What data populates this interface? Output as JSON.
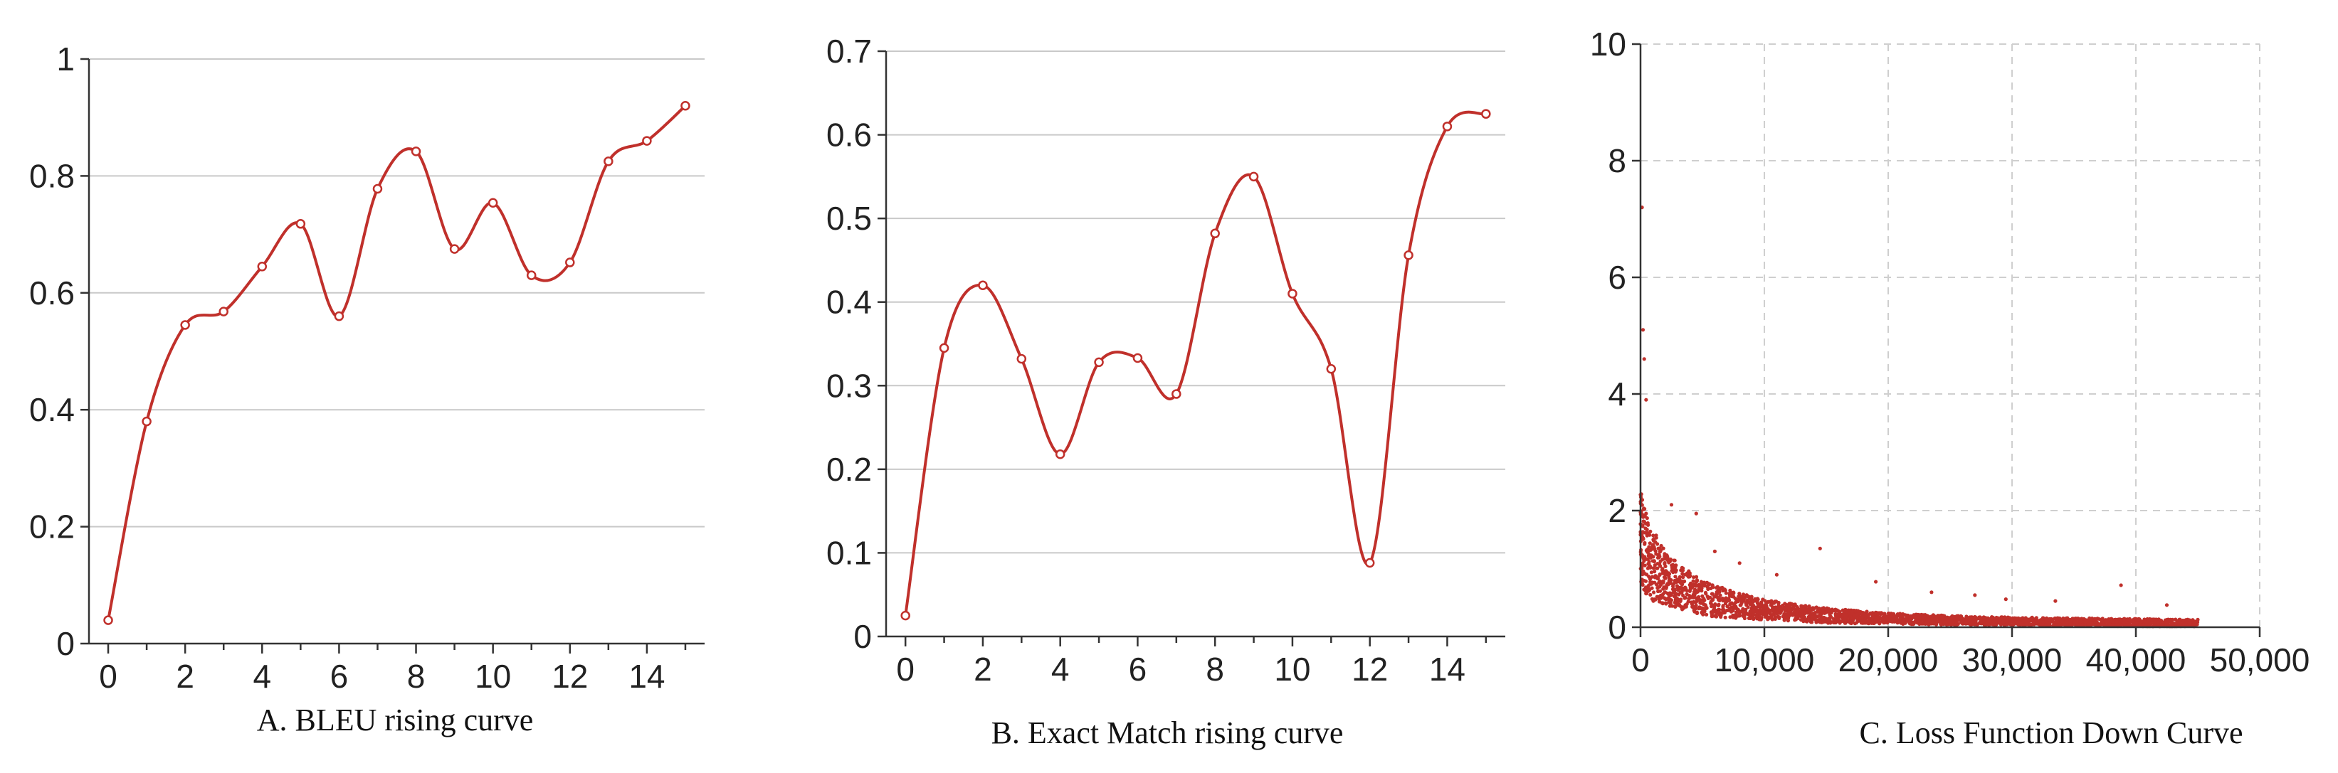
{
  "chart_data": [
    {
      "type": "line",
      "caption": "A. BLEU rising curve",
      "x": [
        0,
        1,
        2,
        3,
        4,
        5,
        6,
        7,
        8,
        9,
        10,
        11,
        12,
        13,
        14,
        15
      ],
      "y": [
        0.04,
        0.38,
        0.545,
        0.568,
        0.645,
        0.718,
        0.56,
        0.778,
        0.842,
        0.675,
        0.754,
        0.63,
        0.652,
        0.825,
        0.86,
        0.92
      ],
      "xlim": [
        -0.5,
        15.5
      ],
      "ylim": [
        0,
        1
      ],
      "xticks": [
        0,
        2,
        4,
        6,
        8,
        10,
        12,
        14
      ],
      "yticks": [
        0,
        0.2,
        0.4,
        0.6,
        0.8,
        1
      ],
      "yticklabels": [
        "0",
        "0.2",
        "0.4",
        "0.6",
        "0.8",
        "1"
      ],
      "grid": "horizontal",
      "color": "#c0302b"
    },
    {
      "type": "line",
      "caption": "B. Exact Match rising curve",
      "x": [
        0,
        1,
        2,
        3,
        4,
        5,
        6,
        7,
        8,
        9,
        10,
        11,
        12,
        13,
        14,
        15
      ],
      "y": [
        0.025,
        0.345,
        0.42,
        0.332,
        0.218,
        0.328,
        0.333,
        0.29,
        0.482,
        0.55,
        0.41,
        0.32,
        0.088,
        0.456,
        0.61,
        0.625
      ],
      "xlim": [
        -0.5,
        15.5
      ],
      "ylim": [
        0,
        0.7
      ],
      "xticks": [
        0,
        2,
        4,
        6,
        8,
        10,
        12,
        14
      ],
      "yticks": [
        0,
        0.1,
        0.2,
        0.3,
        0.4,
        0.5,
        0.6,
        0.7
      ],
      "yticklabels": [
        "0",
        "0.1",
        "0.2",
        "0.3",
        "0.4",
        "0.5",
        "0.6",
        "0.7"
      ],
      "grid": "horizontal",
      "color": "#c0302b"
    },
    {
      "type": "scatter",
      "caption": "C. Loss Function Down Curve",
      "xlim": [
        0,
        50000
      ],
      "ylim": [
        0,
        10
      ],
      "xticks": [
        0,
        10000,
        20000,
        30000,
        40000,
        50000
      ],
      "xticklabels": [
        "0",
        "10,000",
        "20,000",
        "30,000",
        "40,000",
        "50,000"
      ],
      "yticks": [
        0,
        2,
        4,
        6,
        8,
        10
      ],
      "yticklabels": [
        "0",
        "2",
        "4",
        "6",
        "8",
        "10"
      ],
      "grid": "both-dashed",
      "color": "#c0302b",
      "x_extent": [
        0,
        45000
      ],
      "trend": [
        [
          0,
          1.6
        ],
        [
          500,
          1.2
        ],
        [
          1000,
          1.05
        ],
        [
          2000,
          0.85
        ],
        [
          3000,
          0.7
        ],
        [
          5000,
          0.5
        ],
        [
          7500,
          0.38
        ],
        [
          10000,
          0.3
        ],
        [
          15000,
          0.2
        ],
        [
          20000,
          0.15
        ],
        [
          25000,
          0.12
        ],
        [
          30000,
          0.1
        ],
        [
          35000,
          0.09
        ],
        [
          40000,
          0.08
        ],
        [
          45000,
          0.07
        ]
      ],
      "spread": [
        [
          0,
          0.8
        ],
        [
          2000,
          0.45
        ],
        [
          5000,
          0.3
        ],
        [
          10000,
          0.17
        ],
        [
          20000,
          0.09
        ],
        [
          30000,
          0.07
        ],
        [
          45000,
          0.06
        ]
      ],
      "outliers": [
        [
          120,
          7.2
        ],
        [
          200,
          5.1
        ],
        [
          300,
          4.6
        ],
        [
          450,
          3.9
        ],
        [
          2500,
          2.1
        ],
        [
          4500,
          1.95
        ],
        [
          6000,
          1.3
        ],
        [
          8000,
          1.1
        ],
        [
          11000,
          0.9
        ],
        [
          14500,
          1.35
        ],
        [
          19000,
          0.78
        ],
        [
          23500,
          0.6
        ],
        [
          27000,
          0.55
        ],
        [
          29500,
          0.48
        ],
        [
          33500,
          0.45
        ],
        [
          38800,
          0.72
        ],
        [
          42500,
          0.38
        ]
      ]
    }
  ]
}
